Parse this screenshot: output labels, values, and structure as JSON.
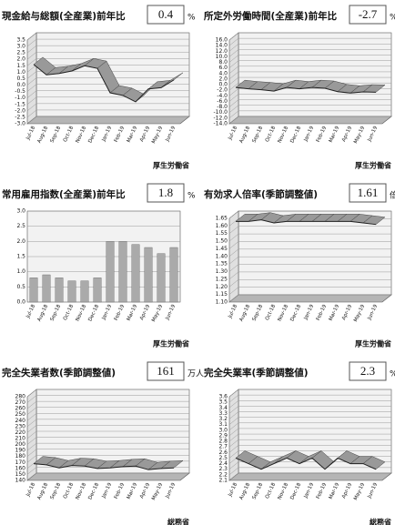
{
  "chart_data": [
    {
      "type": "line",
      "title": "現金給与総額(全産業)前年比",
      "headline": 0.4,
      "unit": "%",
      "source": "厚生労働省",
      "categories": [
        "Jul-18",
        "Aug-18",
        "Sep-18",
        "Oct-18",
        "Nov-18",
        "Dec-18",
        "Jan-19",
        "Feb-19",
        "Mar-19",
        "Apr-19",
        "May-19",
        "Jun-19"
      ],
      "values": [
        1.6,
        0.8,
        0.9,
        1.1,
        1.5,
        1.3,
        -0.6,
        -0.8,
        -1.3,
        -0.3,
        -0.2,
        0.4
      ],
      "ylim": [
        -3,
        3.5
      ],
      "yticks": [
        {
          "value": -3,
          "label": "-3.0"
        },
        -2.5,
        {
          "value": -2,
          "label": "-2.0"
        },
        -1.5,
        {
          "value": -1,
          "label": "-1.0"
        },
        -0.5,
        {
          "value": 0,
          "label": "0.0"
        },
        0.5,
        {
          "value": 1,
          "label": "1.0"
        },
        1.5,
        {
          "value": 2,
          "label": "2.0"
        },
        2.5,
        {
          "value": 3,
          "label": "3.0"
        },
        3.5
      ],
      "color": "#999999"
    },
    {
      "type": "line",
      "title": "所定外労働時間(全産業)前年比",
      "headline": -2.7,
      "unit": "%",
      "source": "厚生労働省",
      "categories": [
        "Jul-18",
        "Aug-18",
        "Sep-18",
        "Oct-18",
        "Nov-18",
        "Dec-18",
        "Jan-19",
        "Feb-19",
        "Mar-19",
        "Apr-19",
        "May-19",
        "Jun-19"
      ],
      "values": [
        -1.0,
        -1.5,
        -1.8,
        -2.3,
        -1.0,
        -1.5,
        -1.0,
        -1.3,
        -2.5,
        -3.0,
        -2.6,
        -2.7
      ],
      "ylim": [
        -14,
        16
      ],
      "yticks": [
        {
          "value": -14,
          "label": "-14.0"
        },
        {
          "value": -12,
          "label": "-12.0"
        },
        {
          "value": -10,
          "label": "-10.0"
        },
        {
          "value": -8,
          "label": "-8.0"
        },
        {
          "value": -6,
          "label": "-6.0"
        },
        {
          "value": -4,
          "label": "-4.0"
        },
        {
          "value": -2,
          "label": "-2.0"
        },
        {
          "value": 0,
          "label": "0.0"
        },
        {
          "value": 2,
          "label": "2.0"
        },
        {
          "value": 4,
          "label": "4.0"
        },
        {
          "value": 6,
          "label": "6.0"
        },
        {
          "value": 8,
          "label": "8.0"
        },
        {
          "value": 10,
          "label": "10.0"
        },
        {
          "value": 12,
          "label": "12.0"
        },
        {
          "value": 14,
          "label": "14.0"
        },
        {
          "value": 16,
          "label": "16.0"
        }
      ],
      "color": "#999999"
    },
    {
      "type": "bar",
      "title": "常用雇用指数(全産業)前年比",
      "headline": 1.8,
      "unit": "%",
      "source": "厚生労働省",
      "categories": [
        "Jul-18",
        "Aug-18",
        "Sep-18",
        "Oct-18",
        "Nov-18",
        "Dec-18",
        "Jan-19",
        "Feb-19",
        "Mar-19",
        "Apr-19",
        "May-19",
        "Jun-19"
      ],
      "values": [
        0.8,
        0.9,
        0.8,
        0.7,
        0.7,
        0.8,
        2.0,
        2.0,
        1.9,
        1.8,
        1.6,
        1.8
      ],
      "ylim": [
        0,
        3
      ],
      "yticks": [
        {
          "value": 0,
          "label": "0.0"
        },
        0.5,
        {
          "value": 1,
          "label": "1.0"
        },
        1.5,
        {
          "value": 2,
          "label": "2.0"
        },
        2.5,
        {
          "value": 3,
          "label": "3.0"
        }
      ],
      "color": "#aaaaaa"
    },
    {
      "type": "line",
      "title": "有効求人倍率(季節調整値)",
      "headline": 1.61,
      "unit": "倍",
      "source": "厚生労働省",
      "categories": [
        "Jul-18",
        "Aug-18",
        "Sep-18",
        "Oct-18",
        "Nov-18",
        "Dec-18",
        "Jan-19",
        "Feb-19",
        "Mar-19",
        "Apr-19",
        "May-19",
        "Jun-19"
      ],
      "values": [
        1.63,
        1.63,
        1.64,
        1.62,
        1.63,
        1.63,
        1.63,
        1.63,
        1.63,
        1.63,
        1.62,
        1.61
      ],
      "ylim": [
        1.1,
        1.65
      ],
      "yticks": [
        {
          "value": 1.1,
          "label": "1.10"
        },
        1.15,
        {
          "value": 1.2,
          "label": "1.20"
        },
        1.25,
        {
          "value": 1.3,
          "label": "1.30"
        },
        1.35,
        {
          "value": 1.4,
          "label": "1.40"
        },
        1.45,
        {
          "value": 1.5,
          "label": "1.50"
        },
        1.55,
        {
          "value": 1.6,
          "label": "1.60"
        },
        1.65
      ],
      "color": "#999999"
    },
    {
      "type": "line",
      "title": "完全失業者数(季節調整値)",
      "headline": 161,
      "unit": "万人",
      "source": "総務省",
      "categories": [
        "Jul-18",
        "Aug-18",
        "Sep-18",
        "Oct-18",
        "Nov-18",
        "Dec-18",
        "Jan-19",
        "Feb-19",
        "Mar-19",
        "Apr-19",
        "May-19",
        "Jun-19"
      ],
      "values": [
        168,
        166,
        161,
        165,
        164,
        160,
        161,
        163,
        164,
        158,
        160,
        161
      ],
      "ylim": [
        140,
        280
      ],
      "yticks": [
        140,
        150,
        160,
        170,
        180,
        190,
        200,
        210,
        220,
        230,
        240,
        250,
        260,
        270,
        280
      ],
      "color": "#999999"
    },
    {
      "type": "line",
      "title": "完全失業率(季節調整値)",
      "headline": 2.3,
      "unit": "%",
      "source": "総務省",
      "categories": [
        "Jul-18",
        "Aug-18",
        "Sep-18",
        "Oct-18",
        "Nov-18",
        "Dec-18",
        "Jan-19",
        "Feb-19",
        "Mar-19",
        "Apr-19",
        "May-19",
        "Jun-19"
      ],
      "values": [
        2.5,
        2.4,
        2.3,
        2.4,
        2.5,
        2.4,
        2.5,
        2.3,
        2.5,
        2.4,
        2.4,
        2.3
      ],
      "ylim": [
        2.1,
        3.6
      ],
      "yticks": [
        2.1,
        2.2,
        2.3,
        2.4,
        2.5,
        2.6,
        2.7,
        2.8,
        2.9,
        {
          "value": 3,
          "label": "3.0"
        },
        3.1,
        3.2,
        3.3,
        3.4,
        3.5,
        3.6
      ],
      "color": "#999999"
    }
  ]
}
